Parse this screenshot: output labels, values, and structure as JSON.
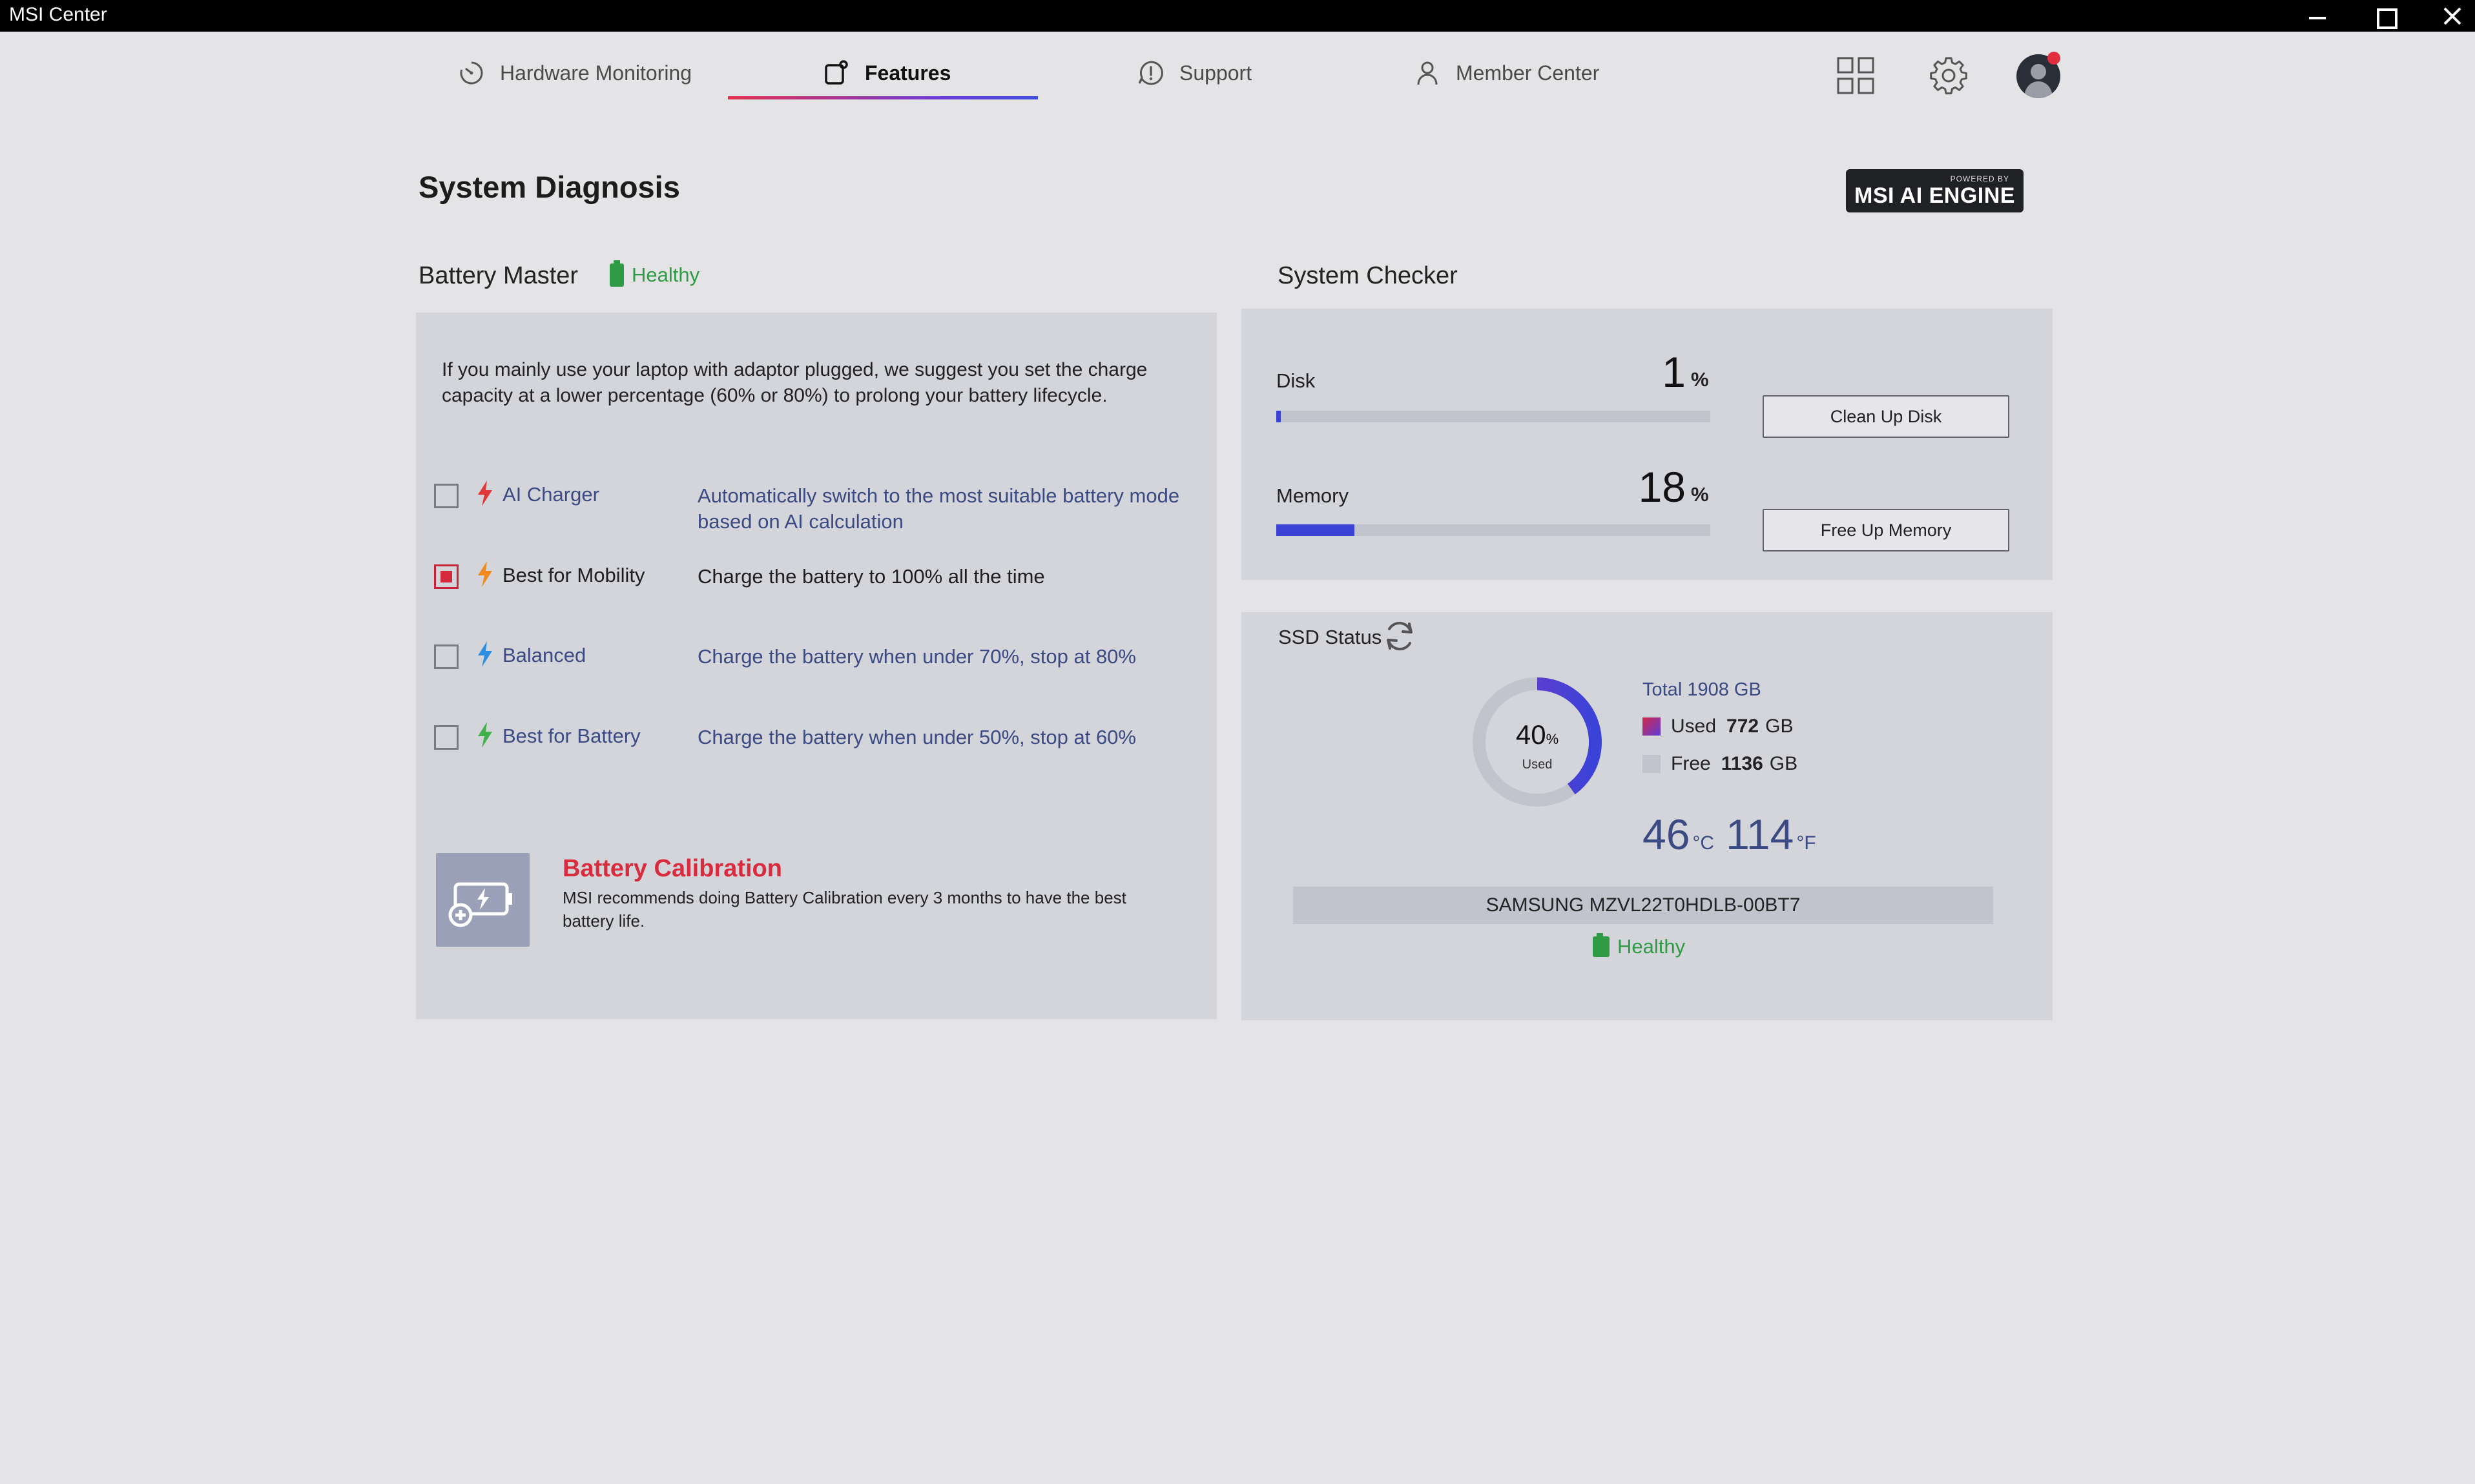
{
  "window": {
    "title": "MSI Center"
  },
  "nav": {
    "tabs": [
      {
        "label": "Hardware Monitoring",
        "icon": "gauge-icon"
      },
      {
        "label": "Features",
        "icon": "features-icon",
        "active": true
      },
      {
        "label": "Support",
        "icon": "support-icon"
      },
      {
        "label": "Member Center",
        "icon": "user-icon"
      }
    ],
    "icons": [
      "apps-grid-icon",
      "gear-icon",
      "avatar-icon"
    ]
  },
  "page": {
    "title": "System Diagnosis",
    "badge_small": "POWERED BY",
    "badge_big": "MSI AI ENGINE"
  },
  "battery_master": {
    "title": "Battery Master",
    "status": "Healthy",
    "advice": "If you mainly use your laptop with adaptor plugged, we suggest you set the charge capacity at a lower percentage (60% or 80%) to prolong your battery lifecycle.",
    "options": [
      {
        "label": "AI Charger",
        "desc": "Automatically switch to the most suitable battery mode based on AI calculation",
        "checked": false,
        "bolt_color": "#e0373a"
      },
      {
        "label": "Best for Mobility",
        "desc": "Charge the battery to 100% all the time",
        "checked": true,
        "bolt_color": "#f08a1c"
      },
      {
        "label": "Balanced",
        "desc": "Charge the battery when under 70%, stop at 80%",
        "checked": false,
        "bolt_color": "#2d8de0"
      },
      {
        "label": "Best for Battery",
        "desc": "Charge the battery when under 50%, stop at 60%",
        "checked": false,
        "bolt_color": "#3fb04a"
      }
    ],
    "calibration": {
      "title": "Battery Calibration",
      "desc": "MSI recommends doing Battery Calibration every 3 months to have the best battery life."
    }
  },
  "system_checker": {
    "title": "System Checker",
    "disk": {
      "label": "Disk",
      "value": "1",
      "unit": "%",
      "fraction": 0.01,
      "button": "Clean Up Disk"
    },
    "memory": {
      "label": "Memory",
      "value": "18",
      "unit": "%",
      "fraction": 0.18,
      "button": "Free Up Memory"
    }
  },
  "ssd": {
    "title": "SSD Status",
    "used_percent": "40",
    "used_percent_unit": "%",
    "used_fraction": 0.4,
    "used_caption": "Used",
    "total": "Total 1908 GB",
    "used_label": "Used",
    "used_value": "772",
    "free_label": "Free",
    "free_value": "1136",
    "gb_unit": "GB",
    "temp_c": "46",
    "temp_c_unit": "°C",
    "temp_f": "114",
    "temp_f_unit": "°F",
    "model": "SAMSUNG MZVL22T0HDLB-00BT7",
    "status": "Healthy",
    "colors": {
      "used": "#5a3ad8",
      "free": "#c1c4cc"
    }
  }
}
